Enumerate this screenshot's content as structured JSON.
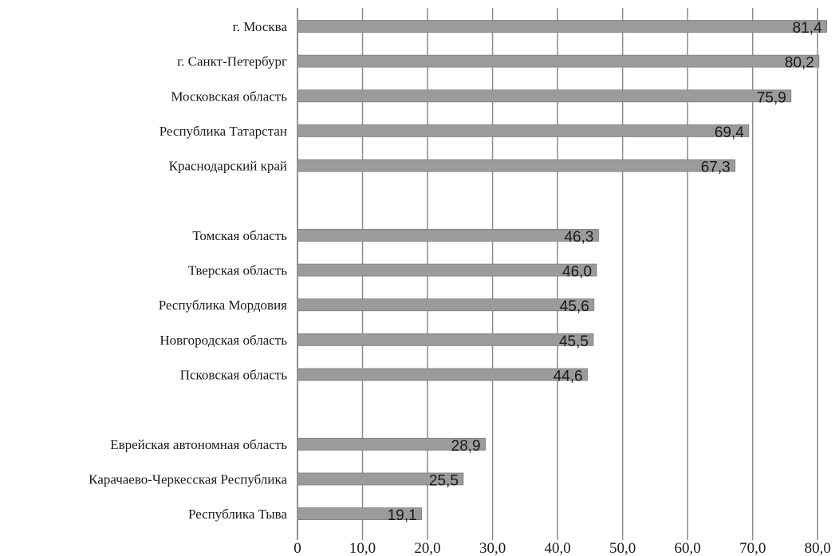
{
  "chart_data": {
    "type": "bar",
    "orientation": "horizontal",
    "categories": [
      "г. Москва",
      "г. Санкт-Петербург",
      "Московская область",
      "Республика Татарстан",
      "Краснодарский край",
      "",
      "Томская область",
      "Тверская область",
      "Республика Мордовия",
      "Новгородская область",
      "Псковская область",
      "",
      "Еврейская автономная область",
      "Карачаево-Черкесская Республика",
      "Республика Тыва"
    ],
    "values": [
      81.4,
      80.2,
      75.9,
      69.4,
      67.3,
      null,
      46.3,
      46.0,
      45.6,
      45.5,
      44.6,
      null,
      28.9,
      25.5,
      19.1
    ],
    "value_labels": [
      "81,4",
      "80,2",
      "75,9",
      "69,4",
      "67,3",
      "",
      "46,3",
      "46,0",
      "45,6",
      "45,5",
      "44,6",
      "",
      "28,9",
      "25,5",
      "19,1"
    ],
    "x_ticks": [
      0,
      10,
      20,
      30,
      40,
      50,
      60,
      70,
      80
    ],
    "x_tick_labels": [
      "0",
      "10,0",
      "20,0",
      "30,0",
      "40,0",
      "50,0",
      "60,0",
      "70,0",
      "80,0"
    ],
    "xlim": [
      0,
      82
    ],
    "grid": true,
    "legend": "none",
    "title": "",
    "xlabel": "",
    "ylabel": "",
    "colors": {
      "bar": "#9b9b9b",
      "bar_edge": "#7d7d7d",
      "grid": "#8c8c8c",
      "text": "#1a1a1a"
    }
  }
}
